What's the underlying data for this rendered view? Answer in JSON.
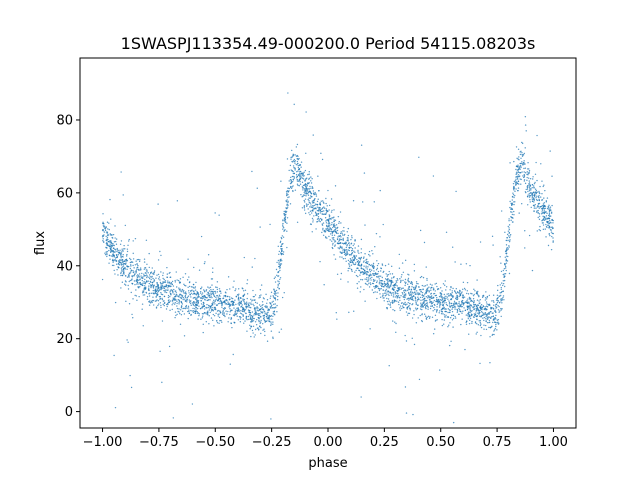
{
  "chart_data": {
    "type": "scatter",
    "title": "1SWASPJ113354.49-000200.0 Period 54115.08203s",
    "xlabel": "phase",
    "ylabel": "flux",
    "xlim": [
      -1.1,
      1.1
    ],
    "ylim": [
      -4.5,
      97
    ],
    "xticks": [
      -1.0,
      -0.75,
      -0.5,
      -0.25,
      0.0,
      0.25,
      0.5,
      0.75,
      1.0
    ],
    "xtick_labels": [
      "−1.00",
      "−0.75",
      "−0.50",
      "−0.25",
      "0.00",
      "0.25",
      "0.50",
      "0.75",
      "1.00"
    ],
    "yticks": [
      0,
      20,
      40,
      60,
      80
    ],
    "ytick_labels": [
      "0",
      "20",
      "40",
      "60",
      "80"
    ],
    "grid": false,
    "legend": "none",
    "point_color": "#1f77b4",
    "series": [
      {
        "x": [
          -1.0,
          -0.95,
          -0.9,
          -0.85,
          -0.8,
          -0.75,
          -0.7,
          -0.65,
          -0.6,
          -0.55,
          -0.5,
          -0.45,
          -0.4,
          -0.35,
          -0.3,
          -0.27,
          -0.25,
          -0.22,
          -0.2,
          -0.18,
          -0.16,
          -0.14,
          -0.12,
          -0.1,
          -0.05,
          0.0,
          0.05,
          0.1,
          0.15,
          0.2,
          0.25,
          0.3,
          0.35,
          0.4,
          0.45,
          0.5,
          0.55,
          0.6,
          0.65,
          0.7,
          0.73,
          0.75,
          0.78,
          0.8,
          0.82,
          0.84,
          0.86,
          0.88,
          0.9,
          0.95,
          1.0
        ],
        "y": [
          49,
          44,
          40,
          37,
          35,
          33.5,
          32.5,
          31.5,
          30.5,
          30,
          29.5,
          29.5,
          29,
          28,
          27,
          26,
          27,
          36,
          48,
          58,
          66,
          68,
          64,
          61,
          56,
          51,
          47,
          43,
          40,
          37,
          35,
          33,
          32,
          31,
          30.5,
          30,
          29.5,
          29,
          28,
          27,
          26,
          27,
          36,
          48,
          58,
          66,
          68,
          64,
          61,
          56,
          51
        ]
      }
    ]
  }
}
